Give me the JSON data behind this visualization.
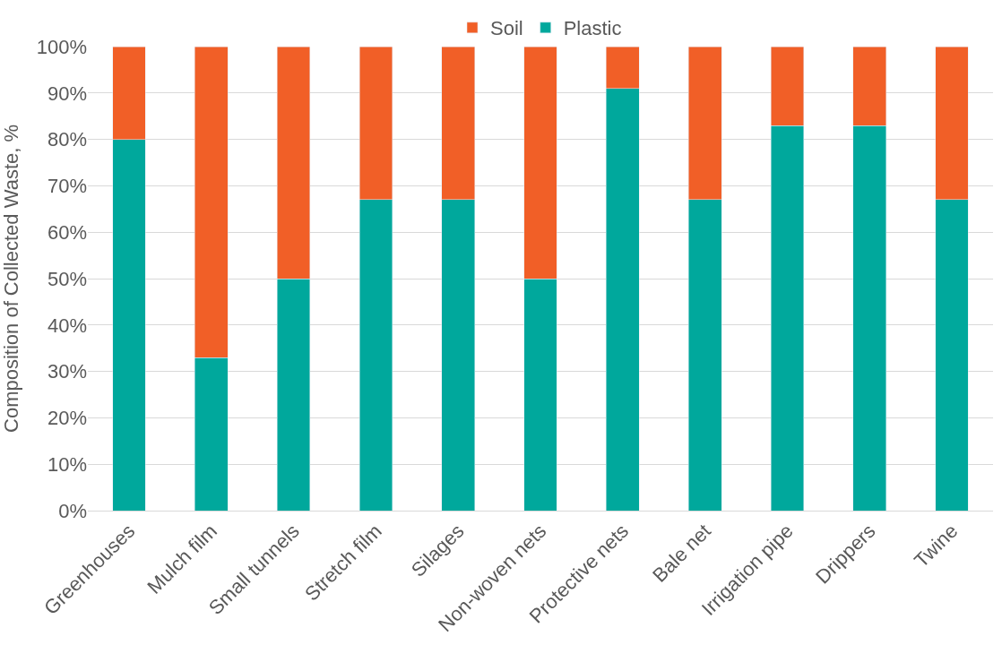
{
  "chart_data": {
    "type": "bar",
    "stacked": true,
    "ylabel": "Composition of Collected Waste, %",
    "categories": [
      "Greenhouses",
      "Mulch film",
      "Small tunnels",
      "Stretch film",
      "Silages",
      "Non-woven nets",
      "Protective nets",
      "Bale net",
      "Irrigation pipe",
      "Drippers",
      "Twine"
    ],
    "series": [
      {
        "name": "Plastic",
        "color": "#00a89c",
        "values": [
          80,
          33,
          50,
          67,
          67,
          50,
          91,
          67,
          83,
          83,
          67
        ]
      },
      {
        "name": "Soil",
        "color": "#f15f27",
        "values": [
          20,
          67,
          50,
          33,
          33,
          50,
          9,
          33,
          17,
          17,
          33
        ]
      }
    ],
    "ylim": [
      0,
      100
    ],
    "yticks": [
      {
        "value": 0,
        "label": "0%"
      },
      {
        "value": 10,
        "label": "10%"
      },
      {
        "value": 20,
        "label": "20%"
      },
      {
        "value": 30,
        "label": "30%"
      },
      {
        "value": 40,
        "label": "40%"
      },
      {
        "value": 50,
        "label": "50%"
      },
      {
        "value": 60,
        "label": "60%"
      },
      {
        "value": 70,
        "label": "70%"
      },
      {
        "value": 80,
        "label": "80%"
      },
      {
        "value": 90,
        "label": "90%"
      },
      {
        "value": 100,
        "label": "100%"
      }
    ],
    "grid": "y",
    "legend": "top"
  }
}
